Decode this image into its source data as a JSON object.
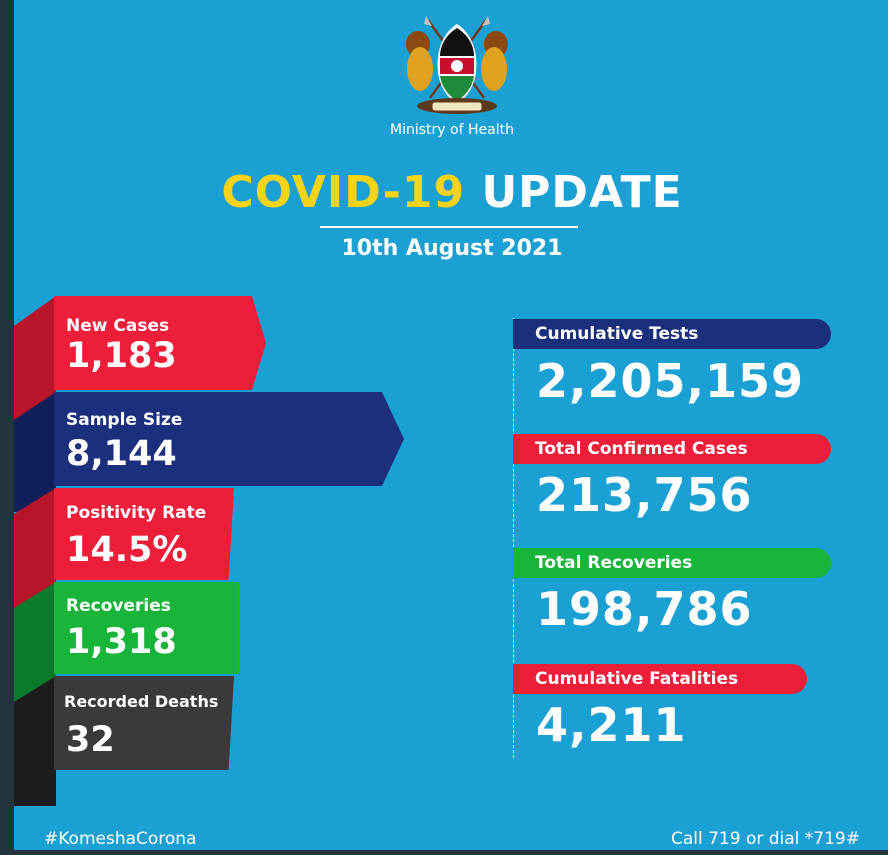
{
  "header": {
    "ministry": "Ministry of Health",
    "title_highlight": "COVID-19",
    "title_rest": "UPDATE",
    "date": "10th August 2021"
  },
  "daily": [
    {
      "label": "New Cases",
      "value": "1,183"
    },
    {
      "label": "Sample Size",
      "value": "8,144"
    },
    {
      "label": "Positivity Rate",
      "value": "14.5%"
    },
    {
      "label": "Recoveries",
      "value": "1,318"
    },
    {
      "label": "Recorded Deaths",
      "value": "32"
    }
  ],
  "cumulative": [
    {
      "label": "Cumulative Tests",
      "value": "2,205,159"
    },
    {
      "label": "Total Confirmed Cases",
      "value": "213,756"
    },
    {
      "label": "Total Recoveries",
      "value": "198,786"
    },
    {
      "label": "Cumulative Fatalities",
      "value": "4,211"
    }
  ],
  "footer": {
    "hashtag": "#KomeshaCorona",
    "call": "Call 719 or dial *719#"
  },
  "colors": {
    "background": "#1aa0d3",
    "title_accent": "#f7d417",
    "red": "#ec1e3a",
    "navy": "#1b2f7c",
    "green": "#18b53a",
    "dark": "#3a3a3a"
  },
  "icons": {
    "emblem": "kenya-coat-of-arms-icon"
  }
}
